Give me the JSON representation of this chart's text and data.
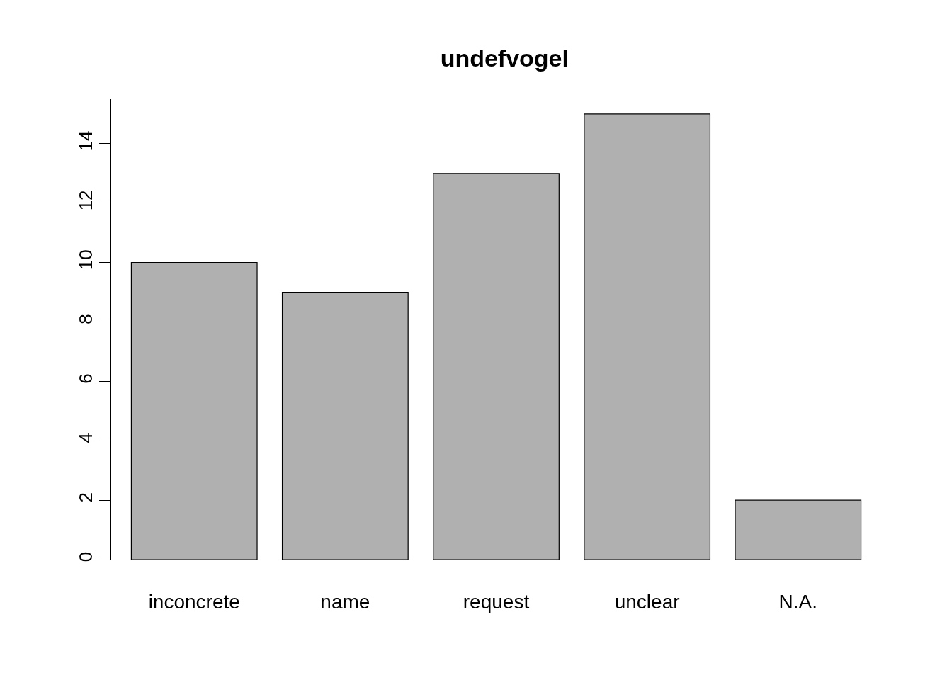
{
  "chart_data": {
    "type": "bar",
    "title": "undefvogel",
    "categories": [
      "inconcrete",
      "name",
      "request",
      "unclear",
      "N.A."
    ],
    "values": [
      10,
      9,
      13,
      15,
      2
    ],
    "color": "#b0b0b0",
    "ylim": [
      0,
      15.5
    ],
    "yticks": [
      0,
      2,
      4,
      6,
      8,
      10,
      12,
      14
    ]
  }
}
